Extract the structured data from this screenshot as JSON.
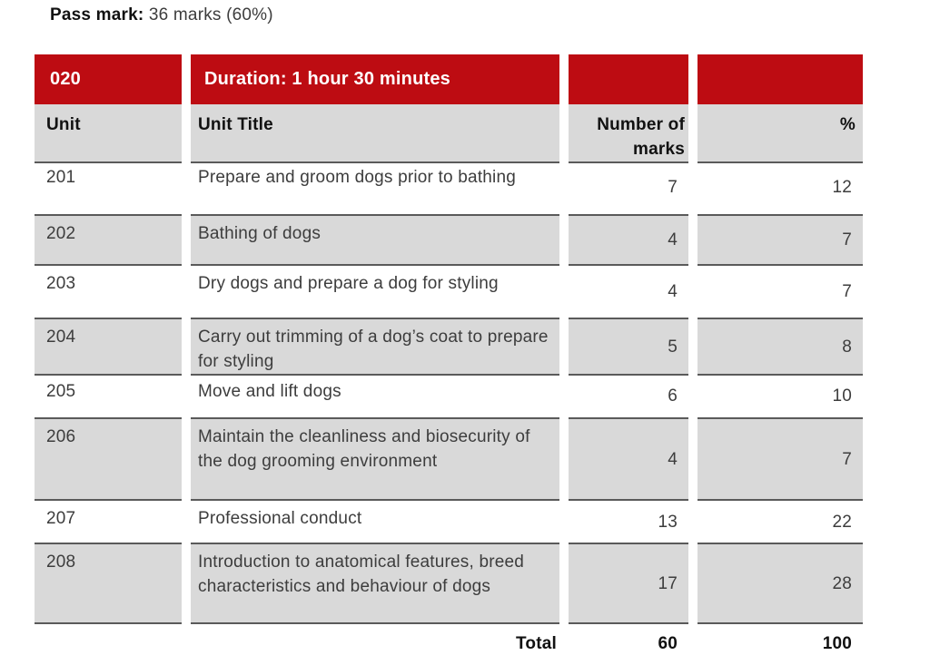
{
  "pass_mark": {
    "label": "Pass mark:",
    "value": " 36 marks (60%)"
  },
  "table": {
    "banner": {
      "code": "020",
      "duration": "Duration: 1 hour 30 minutes"
    },
    "columns": {
      "unit": "Unit",
      "unit_title": "Unit Title",
      "marks": "Number of marks",
      "percent": "%"
    },
    "rows": [
      {
        "unit": "201",
        "title": "Prepare and groom dogs prior to bathing",
        "marks": "7",
        "percent": "12"
      },
      {
        "unit": "202",
        "title": "Bathing of dogs",
        "marks": "4",
        "percent": "7"
      },
      {
        "unit": "203",
        "title": "Dry dogs and prepare a dog for styling",
        "marks": "4",
        "percent": "7"
      },
      {
        "unit": "204",
        "title": "Carry out trimming of a dog’s coat to prepare for styling",
        "marks": "5",
        "percent": "8"
      },
      {
        "unit": "205",
        "title": "Move and lift dogs",
        "marks": "6",
        "percent": "10"
      },
      {
        "unit": "206",
        "title": "Maintain the cleanliness and biosecurity of the dog grooming environment",
        "marks": "4",
        "percent": "7"
      },
      {
        "unit": "207",
        "title": "Professional conduct",
        "marks": "13",
        "percent": "22"
      },
      {
        "unit": "208",
        "title": "Introduction to anatomical features, breed characteristics and behaviour of dogs",
        "marks": "17",
        "percent": "28"
      }
    ],
    "total": {
      "label": "Total",
      "marks": "60",
      "percent": "100"
    }
  },
  "colors": {
    "accent_red": "#bd0c12",
    "cell_gray": "#d9d9d9",
    "border_gray": "#5a5a5a"
  }
}
